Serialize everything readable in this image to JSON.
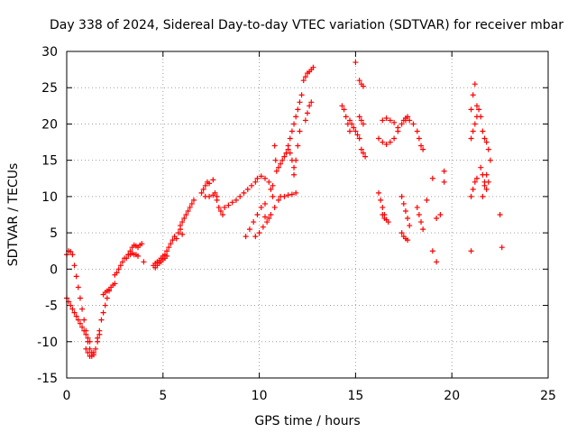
{
  "chart_data": {
    "type": "scatter",
    "title": "Day 338 of 2024, Sidereal Day-to-day VTEC variation (SDTVAR) for receiver mbar",
    "xlabel": "GPS time / hours",
    "ylabel": "SDTVAR / TECUs",
    "xlim": [
      0,
      25
    ],
    "ylim": [
      -15,
      30
    ],
    "xticks": [
      "0",
      "5",
      "10",
      "15",
      "20",
      "25"
    ],
    "yticks": [
      "-15",
      "-10",
      "-5",
      "0",
      "5",
      "10",
      "15",
      "20",
      "25",
      "30"
    ],
    "grid": true,
    "legend": "none",
    "marker": "plus",
    "color": "#ff0000",
    "segments": [
      {
        "x": [
          0.0,
          0.1,
          0.2,
          0.3,
          0.4,
          0.5,
          0.6,
          0.7,
          0.8,
          0.9,
          1.0,
          1.1,
          1.2
        ],
        "y": [
          2.0,
          2.5,
          2.4,
          2.0,
          0.5,
          -1.0,
          -2.5,
          -4.0,
          -5.5,
          -7.0,
          -8.5,
          -9.5,
          -10.0
        ]
      },
      {
        "x": [
          0.0,
          0.1,
          0.2,
          0.3,
          0.4,
          0.5,
          0.6,
          0.7,
          0.8,
          0.9,
          1.0,
          1.1,
          1.2,
          1.3,
          1.4
        ],
        "y": [
          -4.0,
          -4.5,
          -5.0,
          -5.5,
          -6.0,
          -6.5,
          -7.0,
          -7.5,
          -8.0,
          -8.5,
          -9.0,
          -10.0,
          -11.0,
          -11.5,
          -11.8
        ]
      },
      {
        "x": [
          1.0,
          1.1,
          1.2,
          1.3,
          1.4,
          1.5,
          1.6,
          1.7
        ],
        "y": [
          -11.0,
          -11.5,
          -12.0,
          -12.0,
          -11.5,
          -11.0,
          -10.0,
          -9.0
        ]
      },
      {
        "x": [
          1.6,
          1.7,
          1.8,
          1.9,
          2.0,
          2.1,
          2.2
        ],
        "y": [
          -9.5,
          -8.5,
          -7.0,
          -6.0,
          -5.0,
          -4.0,
          -3.0
        ]
      },
      {
        "x": [
          1.9,
          2.0,
          2.1,
          2.2,
          2.3,
          2.4,
          2.5
        ],
        "y": [
          -3.5,
          -3.2,
          -3.0,
          -2.8,
          -2.5,
          -2.2,
          -2.0
        ]
      },
      {
        "x": [
          2.5,
          2.6,
          2.7,
          2.8,
          2.9,
          3.0
        ],
        "y": [
          -0.8,
          -0.5,
          0.0,
          0.5,
          1.0,
          1.5
        ]
      },
      {
        "x": [
          3.1,
          3.2,
          3.3,
          3.4,
          3.5,
          3.6,
          3.7,
          3.8
        ],
        "y": [
          1.5,
          2.0,
          2.5,
          3.0,
          3.3,
          3.2,
          3.0,
          3.3
        ]
      },
      {
        "x": [
          3.2,
          3.3,
          3.4,
          3.5,
          3.6,
          3.7
        ],
        "y": [
          2.0,
          2.0,
          2.2,
          2.0,
          2.0,
          1.8
        ]
      },
      {
        "x": [
          3.9,
          4.0
        ],
        "y": [
          3.5,
          1.0
        ]
      },
      {
        "x": [
          4.5,
          4.6,
          4.7,
          4.8,
          4.9,
          5.0,
          5.1,
          5.2,
          5.3,
          5.4,
          5.5
        ],
        "y": [
          0.5,
          0.8,
          1.0,
          1.2,
          1.5,
          1.8,
          2.0,
          2.5,
          3.0,
          3.5,
          4.0
        ]
      },
      {
        "x": [
          4.6,
          4.7,
          4.8,
          4.9,
          5.0,
          5.1,
          5.2
        ],
        "y": [
          0.2,
          0.5,
          0.8,
          1.0,
          1.3,
          1.5,
          1.8
        ]
      },
      {
        "x": [
          5.6,
          5.7,
          5.8,
          5.9,
          6.0
        ],
        "y": [
          4.5,
          4.2,
          5.0,
          5.5,
          4.8
        ]
      },
      {
        "x": [
          5.9,
          6.0,
          6.1,
          6.2,
          6.3,
          6.4,
          6.5,
          6.6
        ],
        "y": [
          6.0,
          6.5,
          7.0,
          7.5,
          8.0,
          8.5,
          9.0,
          9.5
        ]
      },
      {
        "x": [
          7.0,
          7.1,
          7.2,
          7.3,
          7.4
        ],
        "y": [
          10.5,
          11.0,
          11.5,
          12.0,
          11.8
        ]
      },
      {
        "x": [
          7.2,
          7.4,
          7.6,
          7.8
        ],
        "y": [
          10.0,
          10.0,
          10.2,
          10.0
        ]
      },
      {
        "x": [
          7.6,
          7.7,
          7.8,
          7.9,
          8.0,
          8.1
        ],
        "y": [
          12.3,
          10.5,
          9.5,
          8.5,
          8.0,
          7.5
        ]
      },
      {
        "x": [
          8.2,
          8.4,
          8.6,
          8.8,
          9.0,
          9.2,
          9.4,
          9.6,
          9.8
        ],
        "y": [
          8.5,
          8.8,
          9.2,
          9.5,
          10.0,
          10.5,
          11.0,
          11.5,
          12.0
        ]
      },
      {
        "x": [
          9.3,
          9.5,
          9.7,
          9.9,
          10.1,
          10.3
        ],
        "y": [
          4.5,
          5.5,
          6.5,
          7.5,
          8.5,
          9.0
        ]
      },
      {
        "x": [
          9.8,
          10.0,
          10.2,
          10.4,
          10.6,
          10.8,
          11.0
        ],
        "y": [
          4.5,
          5.0,
          5.8,
          6.5,
          7.5,
          8.5,
          9.5
        ]
      },
      {
        "x": [
          9.9,
          10.1,
          10.3,
          10.5,
          10.7
        ],
        "y": [
          12.5,
          12.8,
          12.5,
          12.0,
          11.5
        ]
      },
      {
        "x": [
          10.3,
          10.5,
          10.6,
          10.7
        ],
        "y": [
          7.2,
          7.0,
          11.0,
          10.0
        ]
      },
      {
        "x": [
          10.9,
          11.0,
          11.1,
          11.2,
          11.3,
          11.4,
          11.5,
          11.6,
          11.7,
          11.8
        ],
        "y": [
          13.5,
          14.0,
          14.5,
          15.0,
          15.5,
          16.0,
          16.5,
          16.0,
          15.0,
          14.0
        ]
      },
      {
        "x": [
          10.8,
          10.85
        ],
        "y": [
          17.0,
          15.0
        ]
      },
      {
        "x": [
          11.1,
          11.3,
          11.5,
          11.7,
          11.9
        ],
        "y": [
          10.0,
          10.0,
          10.2,
          10.3,
          10.5
        ]
      },
      {
        "x": [
          11.4,
          11.5,
          11.6,
          11.7,
          11.8,
          11.9,
          12.0,
          12.1,
          12.2
        ],
        "y": [
          16.0,
          17.0,
          18.0,
          19.0,
          20.0,
          21.0,
          22.0,
          23.0,
          24.0
        ]
      },
      {
        "x": [
          11.8,
          11.9,
          12.0,
          12.1
        ],
        "y": [
          13.0,
          15.0,
          17.0,
          19.0
        ]
      },
      {
        "x": [
          12.4,
          12.5,
          12.6,
          12.7
        ],
        "y": [
          20.5,
          21.5,
          22.5,
          23.0
        ]
      },
      {
        "x": [
          12.3,
          12.4,
          12.5,
          12.6,
          12.7,
          12.8
        ],
        "y": [
          26.0,
          26.5,
          27.0,
          27.2,
          27.5,
          27.8
        ]
      },
      {
        "x": [
          14.3,
          14.4,
          14.5,
          14.6,
          14.7
        ],
        "y": [
          22.5,
          22.0,
          21.0,
          20.0,
          19.0
        ]
      },
      {
        "x": [
          14.7,
          14.8,
          14.9,
          15.0,
          15.1,
          15.2,
          15.3,
          15.4,
          15.5
        ],
        "y": [
          20.5,
          20.0,
          19.5,
          19.0,
          18.5,
          18.0,
          16.5,
          16.0,
          15.5
        ]
      },
      {
        "x": [
          15.0
        ],
        "y": [
          28.5
        ]
      },
      {
        "x": [
          15.2,
          15.3,
          15.4
        ],
        "y": [
          26.0,
          25.5,
          25.2
        ]
      },
      {
        "x": [
          15.2,
          15.3,
          15.4
        ],
        "y": [
          21.0,
          20.5,
          20.0
        ]
      },
      {
        "x": [
          16.2,
          16.4,
          16.6,
          16.8,
          17.0,
          17.2,
          17.4,
          17.6
        ],
        "y": [
          18.0,
          17.5,
          17.2,
          17.5,
          18.0,
          19.0,
          20.0,
          20.5
        ]
      },
      {
        "x": [
          16.4,
          16.6,
          16.8,
          17.0,
          17.2
        ],
        "y": [
          20.5,
          20.8,
          20.5,
          20.2,
          19.5
        ]
      },
      {
        "x": [
          16.2,
          16.3,
          16.4,
          16.5
        ],
        "y": [
          10.5,
          9.5,
          8.5,
          7.5
        ]
      },
      {
        "x": [
          16.4,
          16.5,
          16.6,
          16.7
        ],
        "y": [
          7.5,
          7.0,
          6.8,
          6.5
        ]
      },
      {
        "x": [
          17.4,
          17.5,
          17.6,
          17.7,
          17.8
        ],
        "y": [
          10.0,
          9.0,
          8.0,
          7.0,
          6.0
        ]
      },
      {
        "x": [
          17.4,
          17.5,
          17.6,
          17.7
        ],
        "y": [
          5.0,
          4.5,
          4.2,
          4.0
        ]
      },
      {
        "x": [
          17.5,
          17.6,
          17.7,
          17.8,
          18.0
        ],
        "y": [
          20.5,
          20.8,
          21.0,
          20.5,
          20.0
        ]
      },
      {
        "x": [
          18.2,
          18.3,
          18.4,
          18.5
        ],
        "y": [
          19.0,
          18.0,
          17.0,
          16.5
        ]
      },
      {
        "x": [
          18.2,
          18.3,
          18.4,
          18.5
        ],
        "y": [
          8.5,
          7.5,
          6.5,
          5.5
        ]
      },
      {
        "x": [
          18.7,
          19.0,
          19.2,
          19.4,
          19.6
        ],
        "y": [
          9.5,
          12.5,
          7.0,
          7.5,
          12.0
        ]
      },
      {
        "x": [
          19.0,
          19.2,
          19.6
        ],
        "y": [
          2.5,
          1.0,
          13.5
        ]
      },
      {
        "x": [
          21.0,
          21.1,
          21.2,
          21.3
        ],
        "y": [
          22.0,
          24.0,
          25.5,
          22.5
        ]
      },
      {
        "x": [
          21.0,
          21.1,
          21.2,
          21.3
        ],
        "y": [
          18.0,
          19.0,
          20.0,
          21.0
        ]
      },
      {
        "x": [
          21.0,
          21.1,
          21.2,
          21.3
        ],
        "y": [
          10.0,
          11.0,
          12.0,
          12.5
        ]
      },
      {
        "x": [
          21.4,
          21.5,
          21.6,
          21.7,
          21.8,
          21.9,
          22.0
        ],
        "y": [
          22.0,
          21.0,
          19.0,
          18.0,
          17.5,
          16.5,
          15.0
        ]
      },
      {
        "x": [
          21.5,
          21.6,
          21.7,
          21.8
        ],
        "y": [
          14.0,
          13.0,
          12.0,
          11.0
        ]
      },
      {
        "x": [
          21.6,
          21.7,
          21.8,
          21.9
        ],
        "y": [
          10.0,
          11.5,
          13.0,
          12.0
        ]
      },
      {
        "x": [
          21.0,
          22.5,
          22.6
        ],
        "y": [
          2.5,
          7.5,
          3.0
        ]
      }
    ]
  }
}
